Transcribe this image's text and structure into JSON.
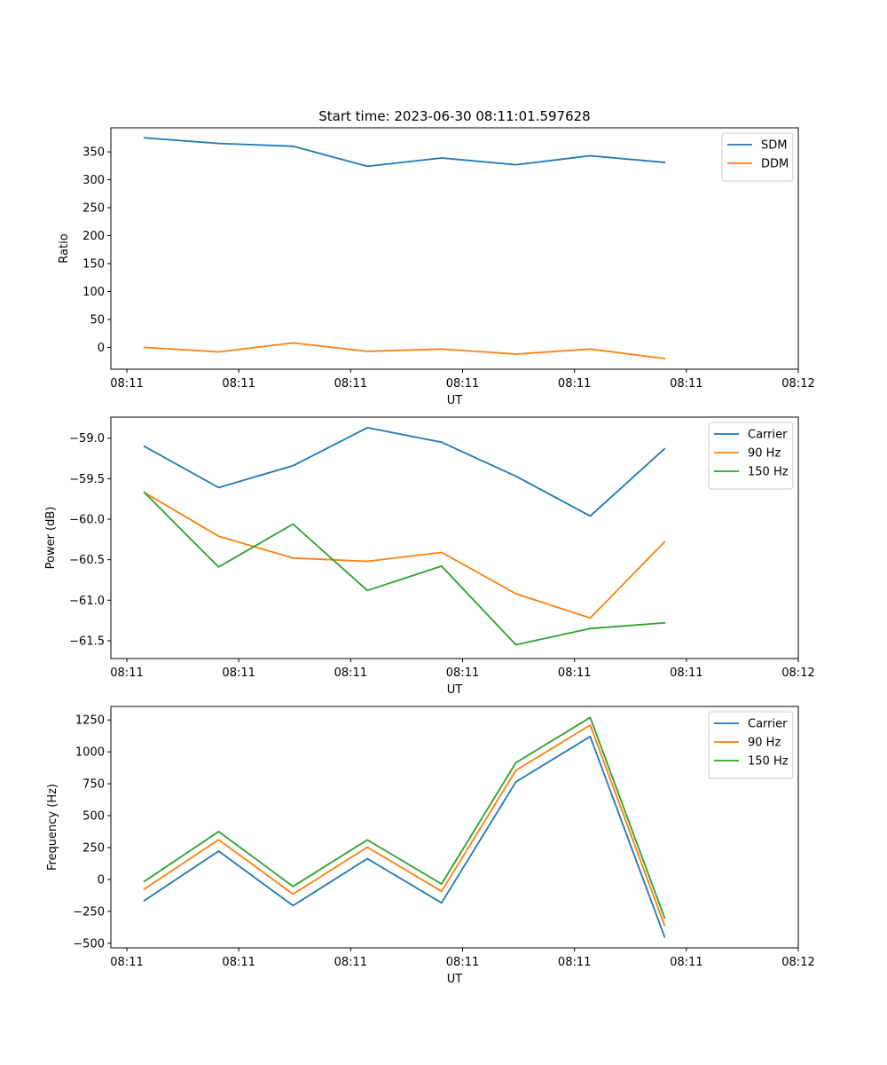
{
  "figure": {
    "title": "Start time: 2023-06-30 08:11:01.597628"
  },
  "chart_data": [
    {
      "type": "line",
      "title": "Start time: 2023-06-30 08:11:01.597628",
      "xlabel": "UT",
      "ylabel": "Ratio",
      "xticks": [
        "08:11",
        "08:11",
        "08:11",
        "08:11",
        "08:11",
        "08:11",
        "08:12"
      ],
      "xlim": [
        -0.45,
        8.8
      ],
      "ylim": [
        -39,
        393
      ],
      "yticks": [
        0,
        50,
        100,
        150,
        200,
        250,
        300,
        350
      ],
      "legend": "top-right",
      "grid": false,
      "series": [
        {
          "name": "SDM",
          "color": "#1f77b4",
          "x": [
            0,
            1,
            2,
            3,
            4,
            5,
            6,
            7
          ],
          "y": [
            375,
            365,
            360,
            324,
            339,
            327,
            343,
            331
          ]
        },
        {
          "name": "DDM",
          "color": "#ff7f0e",
          "x": [
            0,
            1,
            2,
            3,
            4,
            5,
            6,
            7
          ],
          "y": [
            0,
            -8,
            8,
            -7,
            -3,
            -12,
            -3,
            -20
          ]
        }
      ]
    },
    {
      "type": "line",
      "xlabel": "UT",
      "ylabel": "Power (dB)",
      "xticks": [
        "08:11",
        "08:11",
        "08:11",
        "08:11",
        "08:11",
        "08:11",
        "08:12"
      ],
      "xlim": [
        -0.45,
        8.8
      ],
      "ylim": [
        -61.72,
        -58.74
      ],
      "yticks": [
        -61.5,
        -61.0,
        -60.5,
        -60.0,
        -59.5,
        -59.0
      ],
      "yticklabels": [
        "−61.5",
        "−61.0",
        "−60.5",
        "−60.0",
        "−59.5",
        "−59.0"
      ],
      "legend": "top-right",
      "grid": false,
      "series": [
        {
          "name": "Carrier",
          "color": "#1f77b4",
          "x": [
            0,
            1,
            2,
            3,
            4,
            5,
            6,
            7
          ],
          "y": [
            -59.1,
            -59.61,
            -59.34,
            -58.87,
            -59.05,
            -59.47,
            -59.96,
            -59.13
          ]
        },
        {
          "name": "90 Hz",
          "color": "#ff7f0e",
          "x": [
            0,
            1,
            2,
            3,
            4,
            5,
            6,
            7
          ],
          "y": [
            -59.67,
            -60.21,
            -60.48,
            -60.52,
            -60.41,
            -60.92,
            -61.22,
            -60.28
          ]
        },
        {
          "name": "150 Hz",
          "color": "#2ca02c",
          "x": [
            0,
            1,
            2,
            3,
            4,
            5,
            6,
            7
          ],
          "y": [
            -59.67,
            -60.59,
            -60.06,
            -60.88,
            -60.58,
            -61.55,
            -61.35,
            -61.28
          ]
        }
      ]
    },
    {
      "type": "line",
      "xlabel": "UT",
      "ylabel": "Frequency (Hz)",
      "xticks": [
        "08:11",
        "08:11",
        "08:11",
        "08:11",
        "08:11",
        "08:11",
        "08:12"
      ],
      "xlim": [
        -0.45,
        8.8
      ],
      "ylim": [
        -536,
        1356
      ],
      "yticks": [
        -500,
        -250,
        0,
        250,
        500,
        750,
        1000,
        1250
      ],
      "yticklabels": [
        "−500",
        "−250",
        "0",
        "250",
        "500",
        "750",
        "1000",
        "1250"
      ],
      "legend": "top-right",
      "grid": false,
      "series": [
        {
          "name": "Carrier",
          "color": "#1f77b4",
          "x": [
            0,
            1,
            2,
            3,
            4,
            5,
            6,
            7
          ],
          "y": [
            -165,
            222,
            -205,
            163,
            -183,
            765,
            1120,
            -450
          ]
        },
        {
          "name": "90 Hz",
          "color": "#ff7f0e",
          "x": [
            0,
            1,
            2,
            3,
            4,
            5,
            6,
            7
          ],
          "y": [
            -75,
            312,
            -115,
            253,
            -93,
            855,
            1210,
            -360
          ]
        },
        {
          "name": "150 Hz",
          "color": "#2ca02c",
          "x": [
            0,
            1,
            2,
            3,
            4,
            5,
            6,
            7
          ],
          "y": [
            -15,
            375,
            -55,
            310,
            -35,
            915,
            1270,
            -300
          ]
        }
      ]
    }
  ]
}
